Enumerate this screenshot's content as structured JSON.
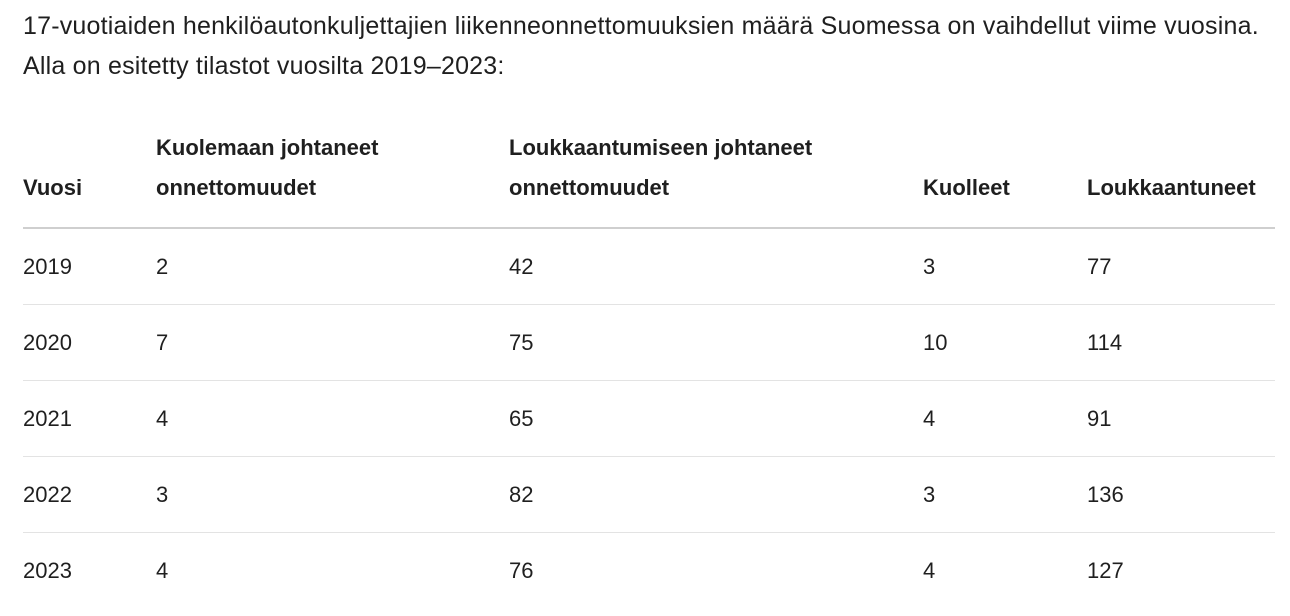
{
  "intro": {
    "text": "17-vuotiaiden henkilöautonkuljettajien liikenneonnettomuuksien määrä Suomessa on vaihdellut viime vuosina. Alla on esitetty tilastot vuosilta 2019–2023:"
  },
  "table": {
    "headers": [
      {
        "label": "Vuosi"
      },
      {
        "label": "Kuolemaan johtaneet onnettomuudet"
      },
      {
        "label": "Loukkaantumiseen johtaneet onnettomuudet"
      },
      {
        "label": "Kuolleet"
      },
      {
        "label": "Loukkaantuneet"
      }
    ],
    "rows": [
      {
        "year": "2019",
        "fatal_accidents": "2",
        "injury_accidents": "42",
        "deaths": "3",
        "injured": "77"
      },
      {
        "year": "2020",
        "fatal_accidents": "7",
        "injury_accidents": "75",
        "deaths": "10",
        "injured": "114"
      },
      {
        "year": "2021",
        "fatal_accidents": "4",
        "injury_accidents": "65",
        "deaths": "4",
        "injured": "91"
      },
      {
        "year": "2022",
        "fatal_accidents": "3",
        "injury_accidents": "82",
        "deaths": "3",
        "injured": "136"
      },
      {
        "year": "2023",
        "fatal_accidents": "4",
        "injury_accidents": "76",
        "deaths": "4",
        "injured": "127"
      }
    ]
  }
}
